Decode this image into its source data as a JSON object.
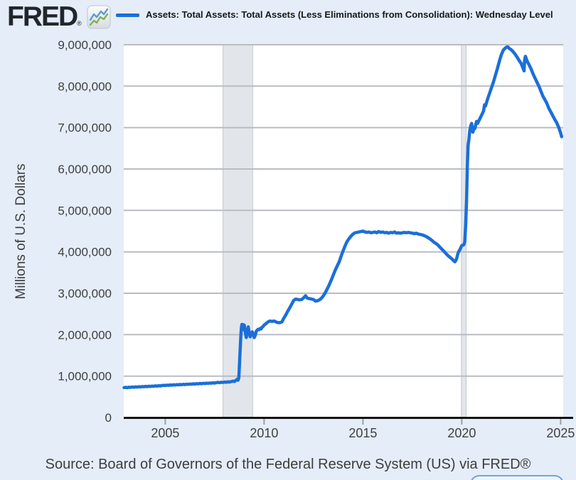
{
  "header": {
    "logo_text": "FRED",
    "logo_registered": "®",
    "legend": {
      "series_label": "Assets: Total Assets: Total Assets (Less Eliminations from Consolidation): Wednesday Level",
      "line_color": "#1b6fd8"
    }
  },
  "y_axis_title": "Millions of U.S. Dollars",
  "source_line": "Source: Board of Governors of the Federal Reserve System (US) via FRED®",
  "colors": {
    "page_background": "#e4edf8",
    "plot_background": "#ffffff",
    "gridline": "#b9bdc2",
    "axis": "#141414",
    "recession_band_fill": "#e2e6eb",
    "recession_band_edge": "#c3c9d0",
    "tick": "#9aa0a6",
    "tick_label": "#3f3f3f",
    "series_line": "#1b6fd8"
  },
  "chart_data": {
    "type": "line",
    "title": "Assets: Total Assets: Total Assets (Less Eliminations from Consolidation): Wednesday Level",
    "xlabel": "",
    "ylabel": "Millions of U.S. Dollars",
    "xlim": [
      2002.9,
      2025.13
    ],
    "ylim": [
      0,
      9000000
    ],
    "x_ticks": [
      2005,
      2010,
      2015,
      2020,
      2025
    ],
    "y_ticks": [
      0,
      1000000,
      2000000,
      3000000,
      4000000,
      5000000,
      6000000,
      7000000,
      8000000,
      9000000
    ],
    "grid": "horizontal",
    "legend_position": "top",
    "recession_bands": [
      {
        "start": 2007.92,
        "end": 2009.42
      },
      {
        "start": 2019.98,
        "end": 2020.22
      }
    ],
    "series": [
      {
        "name": "Assets: Total Assets: Total Assets (Less Eliminations from Consolidation): Wednesday Level",
        "color": "#1b6fd8",
        "unit": "Millions of U.S. Dollars",
        "points": [
          [
            2002.92,
            724000
          ],
          [
            2003,
            728000
          ],
          [
            2003.08,
            720000
          ],
          [
            2003.17,
            732000
          ],
          [
            2003.25,
            726000
          ],
          [
            2003.33,
            737000
          ],
          [
            2003.42,
            730000
          ],
          [
            2003.5,
            740000
          ],
          [
            2003.58,
            734000
          ],
          [
            2003.67,
            744000
          ],
          [
            2003.75,
            738000
          ],
          [
            2003.83,
            748000
          ],
          [
            2003.92,
            742000
          ],
          [
            2004,
            752000
          ],
          [
            2004.08,
            746000
          ],
          [
            2004.17,
            756000
          ],
          [
            2004.25,
            750000
          ],
          [
            2004.33,
            760000
          ],
          [
            2004.42,
            754000
          ],
          [
            2004.5,
            764000
          ],
          [
            2004.58,
            758000
          ],
          [
            2004.67,
            768000
          ],
          [
            2004.75,
            762000
          ],
          [
            2004.83,
            772000
          ],
          [
            2004.92,
            778000
          ],
          [
            2005,
            772000
          ],
          [
            2005.08,
            782000
          ],
          [
            2005.17,
            776000
          ],
          [
            2005.25,
            786000
          ],
          [
            2005.33,
            780000
          ],
          [
            2005.42,
            790000
          ],
          [
            2005.5,
            784000
          ],
          [
            2005.58,
            794000
          ],
          [
            2005.67,
            788000
          ],
          [
            2005.75,
            798000
          ],
          [
            2005.83,
            792000
          ],
          [
            2005.92,
            802000
          ],
          [
            2006,
            796000
          ],
          [
            2006.08,
            806000
          ],
          [
            2006.17,
            800000
          ],
          [
            2006.25,
            810000
          ],
          [
            2006.33,
            804000
          ],
          [
            2006.42,
            814000
          ],
          [
            2006.5,
            808000
          ],
          [
            2006.58,
            818000
          ],
          [
            2006.67,
            812000
          ],
          [
            2006.75,
            822000
          ],
          [
            2006.83,
            816000
          ],
          [
            2006.92,
            826000
          ],
          [
            2007,
            820000
          ],
          [
            2007.08,
            830000
          ],
          [
            2007.17,
            824000
          ],
          [
            2007.25,
            834000
          ],
          [
            2007.33,
            828000
          ],
          [
            2007.42,
            838000
          ],
          [
            2007.5,
            832000
          ],
          [
            2007.58,
            842000
          ],
          [
            2007.67,
            850000
          ],
          [
            2007.75,
            840000
          ],
          [
            2007.83,
            852000
          ],
          [
            2007.92,
            846000
          ],
          [
            2008,
            858000
          ],
          [
            2008.08,
            850000
          ],
          [
            2008.17,
            862000
          ],
          [
            2008.25,
            856000
          ],
          [
            2008.33,
            868000
          ],
          [
            2008.42,
            878000
          ],
          [
            2008.5,
            870000
          ],
          [
            2008.55,
            890000
          ],
          [
            2008.6,
            905000
          ],
          [
            2008.65,
            930000
          ],
          [
            2008.68,
            900000
          ],
          [
            2008.72,
            950000
          ],
          [
            2008.75,
            1220000
          ],
          [
            2008.78,
            1560000
          ],
          [
            2008.82,
            1950000
          ],
          [
            2008.85,
            2160000
          ],
          [
            2008.88,
            2250000
          ],
          [
            2008.92,
            2120000
          ],
          [
            2008.95,
            2240000
          ],
          [
            2009,
            2230000
          ],
          [
            2009.05,
            2050000
          ],
          [
            2009.1,
            1930000
          ],
          [
            2009.15,
            2060000
          ],
          [
            2009.2,
            2190000
          ],
          [
            2009.25,
            2030000
          ],
          [
            2009.3,
            1950000
          ],
          [
            2009.35,
            2010000
          ],
          [
            2009.4,
            2070000
          ],
          [
            2009.45,
            2020000
          ],
          [
            2009.5,
            1930000
          ],
          [
            2009.55,
            1980000
          ],
          [
            2009.6,
            2080000
          ],
          [
            2009.65,
            2110000
          ],
          [
            2009.7,
            2130000
          ],
          [
            2009.75,
            2120000
          ],
          [
            2009.8,
            2150000
          ],
          [
            2009.85,
            2140000
          ],
          [
            2009.9,
            2180000
          ],
          [
            2009.95,
            2200000
          ],
          [
            2010,
            2230000
          ],
          [
            2010.1,
            2270000
          ],
          [
            2010.2,
            2310000
          ],
          [
            2010.3,
            2330000
          ],
          [
            2010.4,
            2320000
          ],
          [
            2010.5,
            2330000
          ],
          [
            2010.6,
            2310000
          ],
          [
            2010.7,
            2290000
          ],
          [
            2010.8,
            2290000
          ],
          [
            2010.9,
            2310000
          ],
          [
            2011,
            2400000
          ],
          [
            2011.1,
            2480000
          ],
          [
            2011.2,
            2570000
          ],
          [
            2011.3,
            2650000
          ],
          [
            2011.4,
            2740000
          ],
          [
            2011.5,
            2830000
          ],
          [
            2011.6,
            2860000
          ],
          [
            2011.7,
            2850000
          ],
          [
            2011.8,
            2840000
          ],
          [
            2011.9,
            2850000
          ],
          [
            2012,
            2890000
          ],
          [
            2012.1,
            2940000
          ],
          [
            2012.15,
            2900000
          ],
          [
            2012.2,
            2880000
          ],
          [
            2012.3,
            2870000
          ],
          [
            2012.4,
            2860000
          ],
          [
            2012.5,
            2850000
          ],
          [
            2012.6,
            2810000
          ],
          [
            2012.7,
            2820000
          ],
          [
            2012.8,
            2840000
          ],
          [
            2012.9,
            2880000
          ],
          [
            2013,
            2940000
          ],
          [
            2013.1,
            3020000
          ],
          [
            2013.2,
            3110000
          ],
          [
            2013.3,
            3210000
          ],
          [
            2013.4,
            3320000
          ],
          [
            2013.5,
            3440000
          ],
          [
            2013.6,
            3560000
          ],
          [
            2013.7,
            3660000
          ],
          [
            2013.8,
            3760000
          ],
          [
            2013.9,
            3900000
          ],
          [
            2014,
            4030000
          ],
          [
            2014.1,
            4150000
          ],
          [
            2014.2,
            4250000
          ],
          [
            2014.3,
            4320000
          ],
          [
            2014.4,
            4380000
          ],
          [
            2014.5,
            4430000
          ],
          [
            2014.6,
            4460000
          ],
          [
            2014.7,
            4470000
          ],
          [
            2014.8,
            4480000
          ],
          [
            2014.9,
            4490000
          ],
          [
            2015,
            4500000
          ],
          [
            2015.1,
            4480000
          ],
          [
            2015.2,
            4470000
          ],
          [
            2015.3,
            4480000
          ],
          [
            2015.4,
            4460000
          ],
          [
            2015.5,
            4470000
          ],
          [
            2015.6,
            4480000
          ],
          [
            2015.7,
            4460000
          ],
          [
            2015.8,
            4490000
          ],
          [
            2015.9,
            4470000
          ],
          [
            2016,
            4480000
          ],
          [
            2016.1,
            4460000
          ],
          [
            2016.2,
            4470000
          ],
          [
            2016.3,
            4450000
          ],
          [
            2016.4,
            4470000
          ],
          [
            2016.5,
            4460000
          ],
          [
            2016.6,
            4480000
          ],
          [
            2016.7,
            4450000
          ],
          [
            2016.8,
            4460000
          ],
          [
            2016.9,
            4450000
          ],
          [
            2017,
            4460000
          ],
          [
            2017.1,
            4470000
          ],
          [
            2017.2,
            4460000
          ],
          [
            2017.3,
            4470000
          ],
          [
            2017.4,
            4460000
          ],
          [
            2017.5,
            4450000
          ],
          [
            2017.6,
            4440000
          ],
          [
            2017.7,
            4450000
          ],
          [
            2017.8,
            4430000
          ],
          [
            2017.9,
            4420000
          ],
          [
            2018,
            4410000
          ],
          [
            2018.1,
            4390000
          ],
          [
            2018.2,
            4370000
          ],
          [
            2018.3,
            4340000
          ],
          [
            2018.4,
            4310000
          ],
          [
            2018.5,
            4270000
          ],
          [
            2018.6,
            4230000
          ],
          [
            2018.7,
            4200000
          ],
          [
            2018.8,
            4160000
          ],
          [
            2018.9,
            4110000
          ],
          [
            2019,
            4060000
          ],
          [
            2019.1,
            4010000
          ],
          [
            2019.2,
            3960000
          ],
          [
            2019.3,
            3910000
          ],
          [
            2019.4,
            3870000
          ],
          [
            2019.5,
            3830000
          ],
          [
            2019.6,
            3780000
          ],
          [
            2019.65,
            3760000
          ],
          [
            2019.7,
            3790000
          ],
          [
            2019.75,
            3850000
          ],
          [
            2019.8,
            3950000
          ],
          [
            2019.85,
            4010000
          ],
          [
            2019.9,
            4050000
          ],
          [
            2019.95,
            4100000
          ],
          [
            2020,
            4150000
          ],
          [
            2020.05,
            4160000
          ],
          [
            2020.1,
            4170000
          ],
          [
            2020.15,
            4240000
          ],
          [
            2020.2,
            4670000
          ],
          [
            2020.24,
            5250000
          ],
          [
            2020.28,
            6080000
          ],
          [
            2020.32,
            6570000
          ],
          [
            2020.36,
            6720000
          ],
          [
            2020.4,
            6910000
          ],
          [
            2020.45,
            7040000
          ],
          [
            2020.5,
            7100000
          ],
          [
            2020.53,
            6960000
          ],
          [
            2020.56,
            6890000
          ],
          [
            2020.6,
            6950000
          ],
          [
            2020.63,
            7010000
          ],
          [
            2020.67,
            6980000
          ],
          [
            2020.7,
            7060000
          ],
          [
            2020.75,
            7150000
          ],
          [
            2020.8,
            7100000
          ],
          [
            2020.85,
            7150000
          ],
          [
            2020.9,
            7200000
          ],
          [
            2020.95,
            7250000
          ],
          [
            2021,
            7300000
          ],
          [
            2021.1,
            7400000
          ],
          [
            2021.15,
            7550000
          ],
          [
            2021.2,
            7520000
          ],
          [
            2021.3,
            7680000
          ],
          [
            2021.4,
            7820000
          ],
          [
            2021.5,
            7960000
          ],
          [
            2021.6,
            8100000
          ],
          [
            2021.7,
            8260000
          ],
          [
            2021.8,
            8420000
          ],
          [
            2021.9,
            8600000
          ],
          [
            2022,
            8760000
          ],
          [
            2022.1,
            8870000
          ],
          [
            2022.2,
            8920000
          ],
          [
            2022.3,
            8950000
          ],
          [
            2022.35,
            8940000
          ],
          [
            2022.4,
            8910000
          ],
          [
            2022.5,
            8880000
          ],
          [
            2022.6,
            8830000
          ],
          [
            2022.7,
            8770000
          ],
          [
            2022.8,
            8700000
          ],
          [
            2022.9,
            8620000
          ],
          [
            2023,
            8550000
          ],
          [
            2023.05,
            8490000
          ],
          [
            2023.1,
            8430000
          ],
          [
            2023.15,
            8370000
          ],
          [
            2023.18,
            8640000
          ],
          [
            2023.22,
            8720000
          ],
          [
            2023.27,
            8650000
          ],
          [
            2023.32,
            8590000
          ],
          [
            2023.4,
            8520000
          ],
          [
            2023.5,
            8420000
          ],
          [
            2023.6,
            8300000
          ],
          [
            2023.7,
            8200000
          ],
          [
            2023.8,
            8100000
          ],
          [
            2023.9,
            8000000
          ],
          [
            2024,
            7880000
          ],
          [
            2024.1,
            7760000
          ],
          [
            2024.2,
            7680000
          ],
          [
            2024.3,
            7590000
          ],
          [
            2024.4,
            7470000
          ],
          [
            2024.5,
            7380000
          ],
          [
            2024.6,
            7290000
          ],
          [
            2024.7,
            7200000
          ],
          [
            2024.8,
            7120000
          ],
          [
            2024.9,
            7010000
          ],
          [
            2024.95,
            6940000
          ],
          [
            2025,
            6870000
          ],
          [
            2025.05,
            6780000
          ]
        ]
      }
    ]
  }
}
